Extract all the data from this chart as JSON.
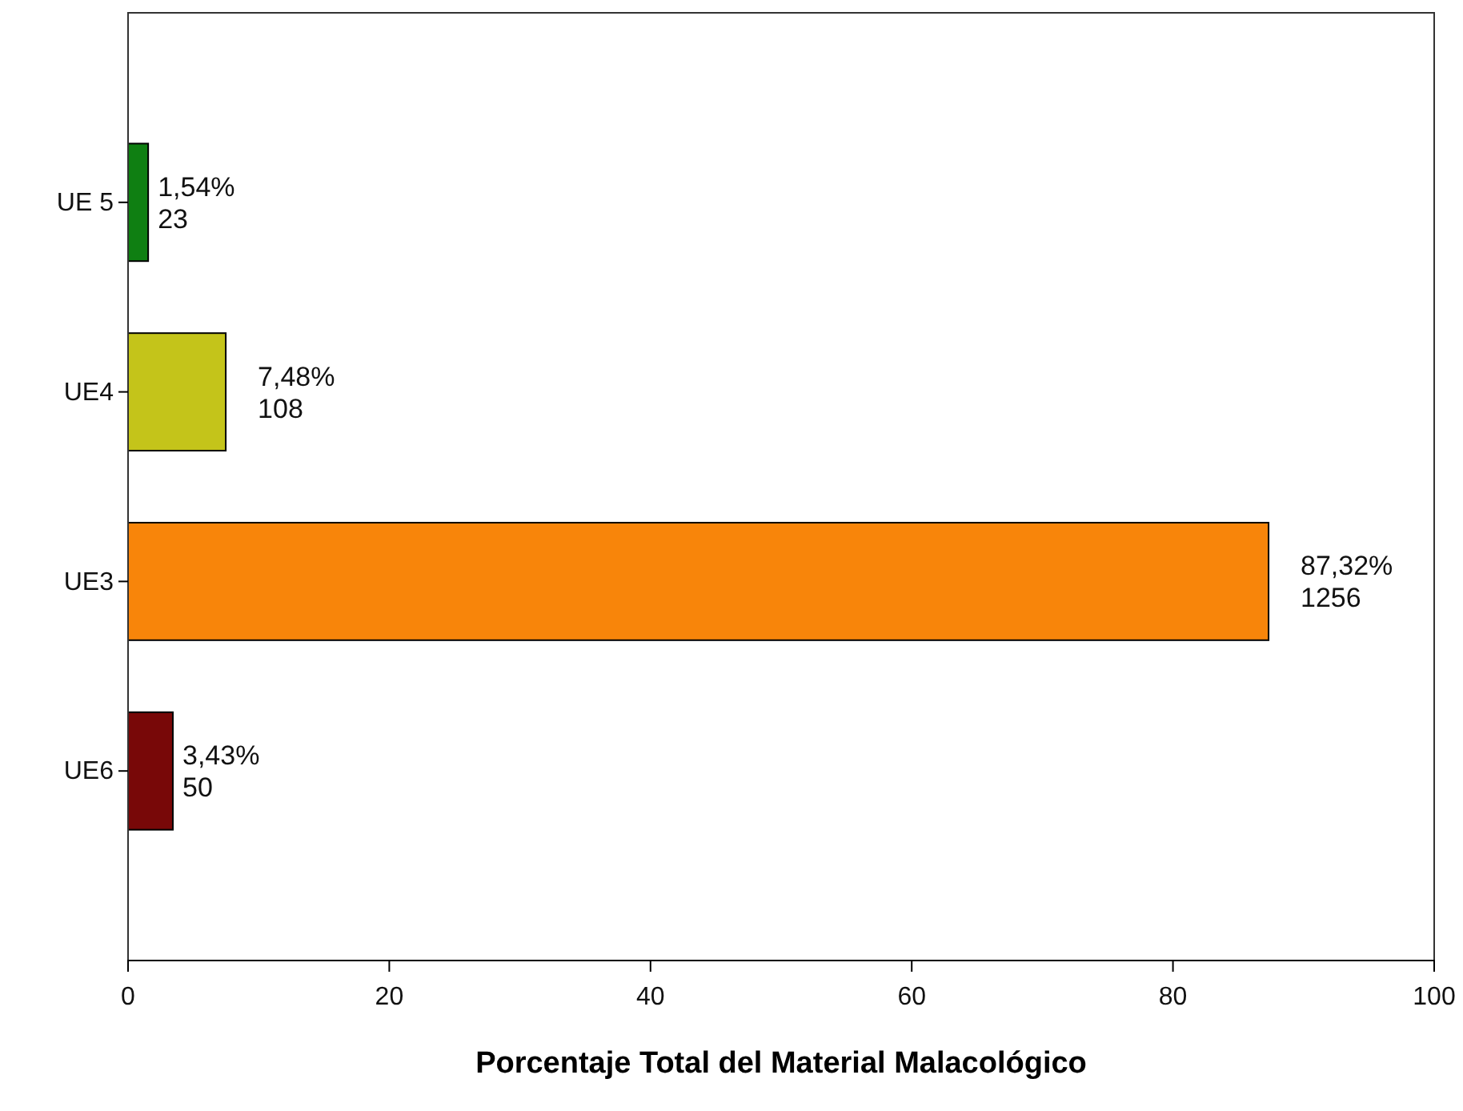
{
  "chart_data": {
    "type": "bar",
    "orientation": "horizontal",
    "xlabel": "Porcentaje Total del Material Malacológico",
    "categories": [
      "UE 5",
      "UE4",
      "UE3",
      "UE6"
    ],
    "values": [
      1.54,
      7.48,
      87.32,
      3.43
    ],
    "colors": [
      "#0f7f12",
      "#c4c41a",
      "#f8850a",
      "#780808"
    ],
    "value_labels": [
      "1,54%\n23",
      "7,48%\n108",
      "87,32%\n1256",
      "3,43%\n50"
    ],
    "xlim": [
      0,
      100
    ],
    "xticks": [
      0,
      20,
      40,
      60,
      80,
      100
    ],
    "grid": false
  }
}
